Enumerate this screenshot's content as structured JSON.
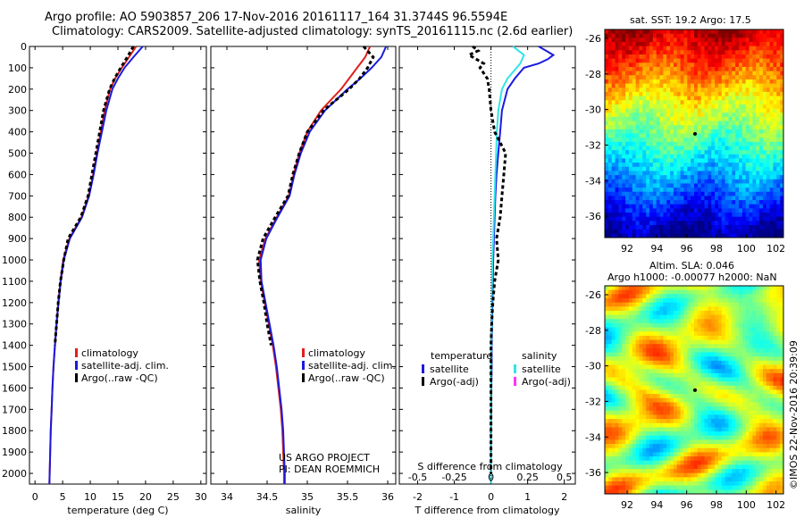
{
  "header": {
    "line1": "Argo profile: AO 5903857_206 17-Nov-2016 20161117_164 31.3744S 96.5594E",
    "line2": "Climatology: CARS2009. Satellite-adjusted climatology: synTS_20161115.nc (2.6d earlier)"
  },
  "colors": {
    "climatology": "#e0201a",
    "satellite": "#1a1adf",
    "argo": "#000000",
    "sal_satellite": "#2fe6e6",
    "sal_argo": "#ff33ff"
  },
  "chart_data": [
    {
      "type": "line",
      "id": "temperature",
      "xlabel": "temperature (deg C)",
      "ylabel": "",
      "xlim": [
        -1,
        31
      ],
      "ylim": [
        2050,
        0
      ],
      "xticks": [
        0,
        5,
        10,
        15,
        20,
        25,
        30
      ],
      "yticks": [
        0,
        100,
        200,
        300,
        400,
        500,
        600,
        700,
        800,
        900,
        1000,
        1100,
        1200,
        1300,
        1400,
        1500,
        1600,
        1700,
        1800,
        1900,
        2000
      ],
      "depth": [
        0,
        50,
        100,
        150,
        200,
        300,
        400,
        500,
        600,
        700,
        800,
        900,
        1000,
        1100,
        1200,
        1300,
        1400,
        1500,
        1600,
        1700,
        1800,
        1900,
        2000,
        2050
      ],
      "series": [
        {
          "name": "climatology",
          "values": [
            18.3,
            17.0,
            15.7,
            14.5,
            13.6,
            12.6,
            11.9,
            11.2,
            10.5,
            9.7,
            8.4,
            6.2,
            5.1,
            4.6,
            4.2,
            3.9,
            3.6,
            3.35,
            3.15,
            3.0,
            2.85,
            2.75,
            2.65,
            2.6
          ]
        },
        {
          "name": "satellite-adj. clim.",
          "values": [
            19.5,
            17.8,
            16.2,
            15.0,
            14.0,
            12.9,
            12.1,
            11.3,
            10.6,
            9.8,
            8.5,
            6.3,
            5.2,
            4.65,
            4.25,
            3.9,
            3.6,
            3.35,
            3.15,
            3.0,
            2.85,
            2.75,
            2.65,
            2.6
          ]
        },
        {
          "name": "Argo(..raw -QC)",
          "values": [
            17.8,
            16.7,
            15.5,
            14.4,
            13.5,
            12.4,
            11.7,
            11.0,
            10.3,
            9.6,
            8.3,
            6.0,
            5.2,
            4.6,
            4.2,
            3.9,
            3.6
          ]
        }
      ],
      "legend": [
        "climatology",
        "satellite-adj. clim.",
        "Argo(..raw -QC)"
      ]
    },
    {
      "type": "line",
      "id": "salinity",
      "xlabel": "salinity",
      "ylabel": "",
      "xlim": [
        33.8,
        36.1
      ],
      "ylim": [
        2050,
        0
      ],
      "xticks": [
        34,
        34.5,
        35,
        35.5,
        36
      ],
      "depth": [
        0,
        50,
        100,
        150,
        200,
        300,
        400,
        500,
        600,
        700,
        800,
        900,
        1000,
        1100,
        1200,
        1300,
        1400,
        1500,
        1600,
        1700,
        1800,
        1900,
        2000,
        2050
      ],
      "series": [
        {
          "name": "climatology",
          "values": [
            35.78,
            35.72,
            35.62,
            35.52,
            35.42,
            35.17,
            35.0,
            34.9,
            34.83,
            34.77,
            34.62,
            34.48,
            34.4,
            34.42,
            34.47,
            34.52,
            34.57,
            34.61,
            34.64,
            34.67,
            34.69,
            34.7,
            34.71,
            34.71
          ]
        },
        {
          "name": "satellite-adj. clim.",
          "values": [
            35.98,
            35.92,
            35.8,
            35.66,
            35.5,
            35.22,
            35.03,
            34.92,
            34.84,
            34.78,
            34.63,
            34.49,
            34.42,
            34.43,
            34.48,
            34.53,
            34.58,
            34.62,
            34.65,
            34.68,
            34.7,
            34.71,
            34.72,
            34.72
          ]
        },
        {
          "name": "Argo(..raw -QC)",
          "values": [
            35.7,
            35.82,
            35.75,
            35.65,
            35.52,
            35.2,
            35.0,
            34.9,
            34.82,
            34.76,
            34.6,
            34.45,
            34.38,
            34.41,
            34.46,
            34.5,
            34.55
          ]
        }
      ],
      "legend": [
        "climatology",
        "satellite-adj. clim.",
        "Argo(..raw -QC)"
      ],
      "annotation": [
        "US ARGO PROJECT",
        "PI: DEAN ROEMMICH"
      ]
    },
    {
      "type": "line",
      "id": "difference",
      "xlabel": "T difference from climatology",
      "top_label": "S difference from climatology",
      "xlim": [
        -2.5,
        2.3
      ],
      "ylim": [
        2050,
        0
      ],
      "xticks": [
        -2,
        -1,
        0,
        1,
        2
      ],
      "top_ticks": [
        "-0.5",
        "-0.25",
        "0",
        "0.25",
        "0.5"
      ],
      "top_tick_values": [
        -2,
        -1,
        0,
        1,
        2
      ],
      "depth": [
        0,
        20,
        40,
        60,
        80,
        100,
        150,
        200,
        300,
        400,
        500,
        600,
        700,
        800,
        900,
        1000,
        1100,
        1200,
        1300,
        1400,
        1500,
        1600,
        1700,
        1800,
        1900,
        2000,
        2050
      ],
      "series": [
        {
          "name": "temperature satellite",
          "values": [
            1.3,
            1.5,
            1.7,
            1.55,
            1.3,
            0.9,
            0.65,
            0.45,
            0.3,
            0.25,
            0.2,
            0.15,
            0.12,
            0.1,
            0.08,
            0.06,
            0.05,
            0.04,
            0.03,
            0.02,
            0.02,
            0.01,
            0.01,
            0.0,
            0.0,
            0.0,
            0.0
          ]
        },
        {
          "name": "salinity satellite",
          "values": [
            0.6,
            0.75,
            0.9,
            0.85,
            0.8,
            0.7,
            0.45,
            0.3,
            0.2,
            0.16,
            0.14,
            0.12,
            0.1,
            0.08,
            0.06,
            0.04,
            0.03,
            0.02,
            0.02,
            0.01,
            0.0,
            0.0,
            0.0,
            0.0,
            0.0,
            0.0,
            0.0
          ]
        },
        {
          "name": "temperature Argo(-adj)",
          "values": [
            -0.5,
            -0.35,
            -0.6,
            -0.4,
            -0.2,
            -0.3,
            -0.1,
            -0.05,
            0.0,
            0.1,
            0.4,
            0.35,
            0.3,
            0.25,
            0.15,
            0.2,
            0.1,
            0.05,
            0.02,
            0.0,
            0.0,
            0.0,
            0.0,
            0.0,
            0.0,
            0.0
          ]
        }
      ],
      "legend_headers": [
        "temperature",
        "salinity"
      ],
      "legend": [
        "satellite",
        "Argo(-adj)",
        "satellite",
        "Argo(-adj)"
      ]
    },
    {
      "type": "heatmap",
      "id": "sst",
      "title": "sat. SST: 19.2  Argo: 17.5",
      "xticks": [
        92,
        94,
        96,
        98,
        100,
        102
      ],
      "yticks": [
        -26,
        -28,
        -30,
        -32,
        -34,
        -36
      ],
      "xlim": [
        90.5,
        102.5
      ],
      "ylim": [
        -37.2,
        -25.5
      ]
    },
    {
      "type": "heatmap",
      "id": "sla",
      "title": "Altim. SLA: 0.046",
      "subtitle": "Argo h1000: -0.00077 h2000: NaN",
      "xticks": [
        92,
        94,
        96,
        98,
        100,
        102
      ],
      "yticks": [
        -26,
        -28,
        -30,
        -32,
        -34,
        -36
      ],
      "xlim": [
        90.5,
        102.5
      ],
      "ylim": [
        -37.2,
        -25.5
      ]
    }
  ],
  "credit": "©IMOS 22-Nov-2016 20:39:09"
}
